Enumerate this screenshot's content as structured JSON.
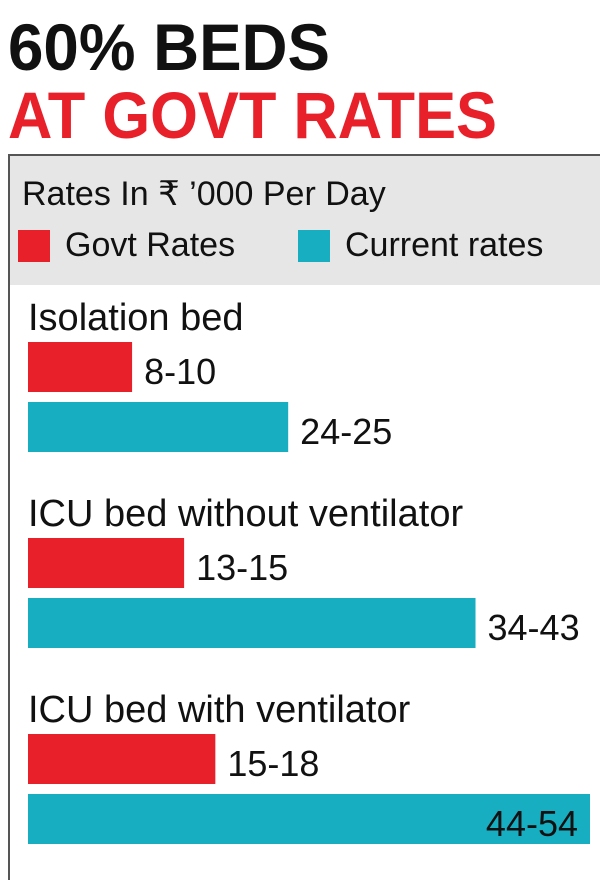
{
  "chart_data": {
    "type": "bar",
    "orientation": "horizontal",
    "title": "60% BEDS",
    "title_line2": "AT GOVT RATES",
    "subtitle": "Rates In ₹ ’000 Per Day",
    "categories": [
      "Isolation bed",
      "ICU bed without ventilator",
      "ICU bed with ventilator"
    ],
    "series": [
      {
        "name": "Govt Rates",
        "color": "#e8202a",
        "low": [
          8,
          13,
          15
        ],
        "high": [
          10,
          15,
          18
        ],
        "value_labels": [
          "8-10",
          "13-15",
          "15-18"
        ]
      },
      {
        "name": "Current rates",
        "color": "#17aec2",
        "low": [
          24,
          34,
          44
        ],
        "high": [
          25,
          43,
          54
        ],
        "value_labels": [
          "24-25",
          "34-43",
          "44-54"
        ]
      }
    ]
  }
}
